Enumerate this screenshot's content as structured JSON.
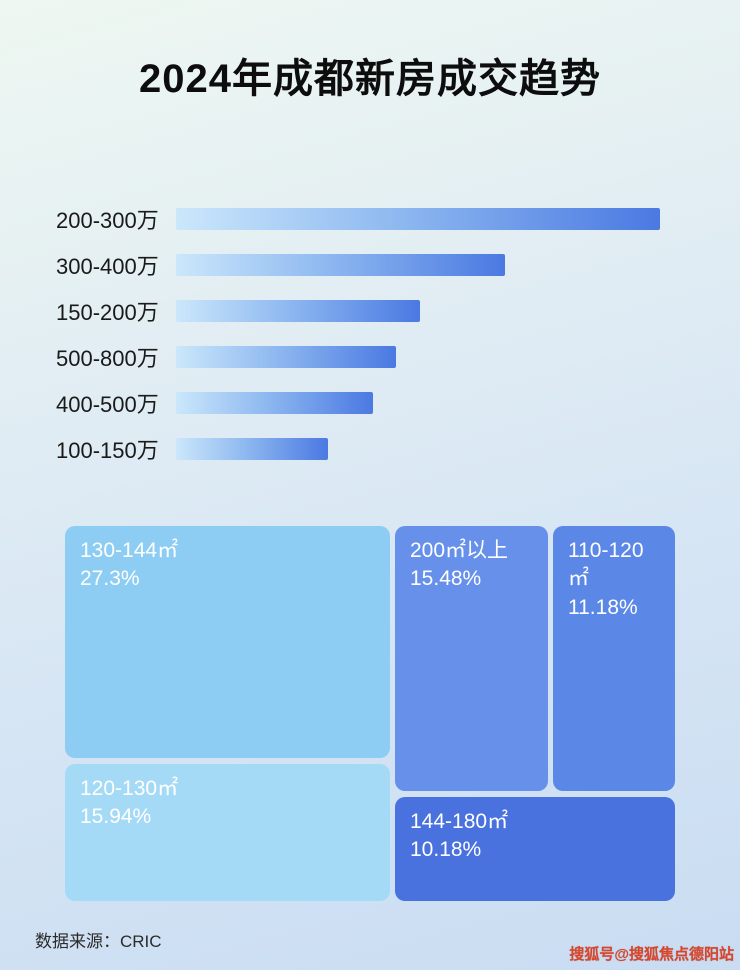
{
  "title": "2024年成都新房成交趋势",
  "colors": {
    "bar_gradient_start": "#cbe7fb",
    "bar_gradient_end": "#4a79e2",
    "title_color": "#0d0d0d",
    "watermark_color": "#d9452a"
  },
  "chart_data": [
    {
      "type": "bar",
      "title": "2024年成都新房成交趋势",
      "orientation": "horizontal",
      "categories": [
        "200-300万",
        "300-400万",
        "150-200万",
        "500-800万",
        "400-500万",
        "100-150万"
      ],
      "values": [
        100,
        68,
        50.5,
        45.4,
        40.6,
        31.5
      ],
      "value_note": "relative bar length as % of longest bar; no numeric axis labels shown in image",
      "xlabel": "",
      "ylabel": "",
      "grid": false,
      "legend": false
    },
    {
      "type": "treemap",
      "title": "",
      "items": [
        {
          "label": "130-144㎡",
          "value": 27.3,
          "display": "27.3%",
          "color": "#8ecdf3"
        },
        {
          "label": "200㎡以上",
          "value": 15.48,
          "display": "15.48%",
          "color": "#6690ea"
        },
        {
          "label": "110-120㎡",
          "value": 11.18,
          "display": "11.18%",
          "color": "#5b87e7"
        },
        {
          "label": "120-130㎡",
          "value": 15.94,
          "display": "15.94%",
          "color": "#a5daf7"
        },
        {
          "label": "144-180㎡",
          "value": 10.18,
          "display": "10.18%",
          "color": "#4a72df"
        }
      ]
    }
  ],
  "footer": {
    "source": "数据来源：CRIC"
  },
  "watermark": "搜狐号@搜狐焦点德阳站"
}
